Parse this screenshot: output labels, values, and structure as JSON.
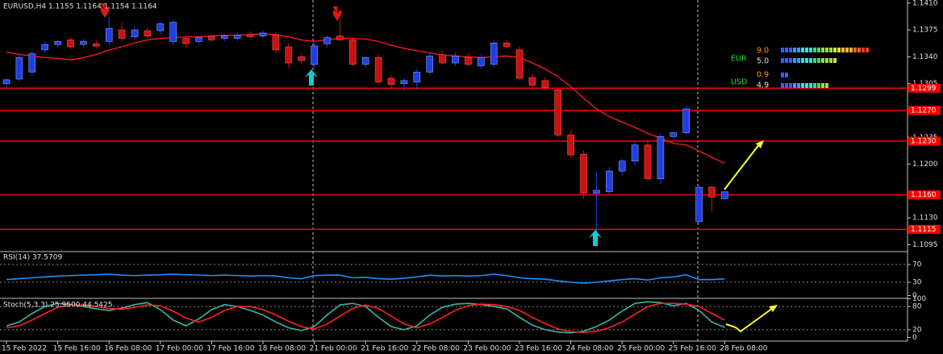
{
  "chart_data": [
    {
      "type": "candlestick",
      "title": "EURUSD,H4  1.1155 1.1164 1.1154 1.1164",
      "categories": [
        "15 Feb 2022",
        null,
        null,
        null,
        "15 Feb 16:00",
        null,
        null,
        null,
        "16 Feb 08:00",
        null,
        null,
        null,
        "17 Feb 00:00",
        null,
        null,
        null,
        "17 Feb 16:00",
        null,
        null,
        null,
        "18 Feb 08:00",
        null,
        null,
        null,
        "21 Feb 00:00",
        null,
        null,
        null,
        "21 Feb 16:00",
        null,
        null,
        null,
        "22 Feb 08:00",
        null,
        null,
        null,
        "23 Feb 00:00",
        null,
        null,
        null,
        "23 Feb 16:00",
        null,
        null,
        null,
        "24 Feb 08:00",
        null,
        null,
        null,
        "25 Feb 00:00",
        null,
        null,
        null,
        "25 Feb 16:00",
        null,
        null,
        null,
        "28 Feb 08:00"
      ],
      "open": [
        1.1305,
        1.1311,
        1.132,
        1.1349,
        1.1356,
        1.1362,
        1.1356,
        1.1357,
        1.136,
        1.1375,
        1.1366,
        1.1374,
        1.1374,
        1.136,
        1.1364,
        1.136,
        1.1366,
        1.1364,
        1.1364,
        1.1369,
        1.1367,
        1.1368,
        1.1353,
        1.134,
        1.133,
        1.1357,
        1.1367,
        1.1362,
        1.133,
        1.1339,
        1.1312,
        1.1305,
        1.1307,
        1.132,
        1.1343,
        1.1332,
        1.1339,
        1.1328,
        1.133,
        1.1358,
        1.1349,
        1.1313,
        1.1309,
        1.1297,
        1.1238,
        1.1213,
        1.1162,
        1.1164,
        1.1191,
        1.1204,
        1.1225,
        1.1181,
        1.1236,
        1.1241,
        1.1125,
        1.117,
        1.1155
      ],
      "high": [
        1.1312,
        1.1345,
        1.1348,
        1.136,
        1.1362,
        1.1365,
        1.1363,
        1.1362,
        1.1392,
        1.1385,
        1.138,
        1.1378,
        1.1385,
        1.1388,
        1.1368,
        1.1367,
        1.137,
        1.137,
        1.1371,
        1.1373,
        1.1374,
        1.1372,
        1.1358,
        1.1345,
        1.136,
        1.1368,
        1.139,
        1.1366,
        1.1342,
        1.1343,
        1.1316,
        1.1312,
        1.1324,
        1.1348,
        1.1348,
        1.1345,
        1.1345,
        1.1343,
        1.1362,
        1.1362,
        1.1353,
        1.1318,
        1.1314,
        1.13,
        1.1245,
        1.1218,
        1.119,
        1.1196,
        1.1208,
        1.123,
        1.1232,
        1.124,
        1.1243,
        1.1275,
        1.1172,
        1.1172,
        1.1164
      ],
      "low": [
        1.13,
        1.1308,
        1.1315,
        1.1345,
        1.1352,
        1.135,
        1.1352,
        1.135,
        1.1355,
        1.136,
        1.1362,
        1.1364,
        1.137,
        1.1355,
        1.1352,
        1.1357,
        1.136,
        1.136,
        1.1361,
        1.1363,
        1.1364,
        1.1345,
        1.1325,
        1.133,
        1.1325,
        1.1352,
        1.136,
        1.1328,
        1.1326,
        1.1305,
        1.1298,
        1.1296,
        1.1297,
        1.1316,
        1.133,
        1.1328,
        1.1328,
        1.1324,
        1.1326,
        1.135,
        1.131,
        1.13,
        1.1297,
        1.1235,
        1.1208,
        1.1155,
        1.11,
        1.116,
        1.1185,
        1.1198,
        1.1178,
        1.1174,
        1.1232,
        1.1238,
        1.1122,
        1.1138,
        1.1154
      ],
      "close": [
        1.131,
        1.1339,
        1.1344,
        1.1356,
        1.136,
        1.1353,
        1.136,
        1.1354,
        1.1377,
        1.1364,
        1.1375,
        1.1367,
        1.1383,
        1.1385,
        1.1357,
        1.1365,
        1.1362,
        1.1367,
        1.1368,
        1.1366,
        1.1371,
        1.1349,
        1.1332,
        1.1335,
        1.1354,
        1.1365,
        1.1362,
        1.133,
        1.1339,
        1.1307,
        1.1304,
        1.1309,
        1.132,
        1.1341,
        1.1332,
        1.1341,
        1.133,
        1.1339,
        1.1358,
        1.1353,
        1.1312,
        1.1303,
        1.13,
        1.1238,
        1.1212,
        1.1162,
        1.1166,
        1.1191,
        1.1204,
        1.1225,
        1.1181,
        1.1236,
        1.1241,
        1.1272,
        1.117,
        1.1157,
        1.1164
      ],
      "up_color": "#1f3fe0",
      "down_color": "#c81212",
      "overlays": [
        {
          "color": "#ff1a1a",
          "values": [
            1.1346,
            1.1343,
            1.1341,
            1.1339,
            1.1338,
            1.1336,
            1.1339,
            1.1343,
            1.1349,
            1.1353,
            1.1358,
            1.1362,
            1.1364,
            1.1365,
            1.1366,
            1.1366,
            1.1367,
            1.1368,
            1.1368,
            1.1369,
            1.137,
            1.1369,
            1.1366,
            1.1362,
            1.136,
            1.1362,
            1.1364,
            1.1364,
            1.1363,
            1.136,
            1.1355,
            1.1351,
            1.1348,
            1.1345,
            1.1342,
            1.1341,
            1.134,
            1.1339,
            1.134,
            1.1341,
            1.1339,
            1.1332,
            1.1324,
            1.1314,
            1.1301,
            1.1286,
            1.1272,
            1.1262,
            1.1255,
            1.1248,
            1.124,
            1.1234,
            1.1227,
            1.1225,
            1.1217,
            1.1209,
            1.1201
          ]
        }
      ],
      "levels": [
        1.1299,
        {
          "value": 1.127,
          "label": "1.1270"
        },
        {
          "value": 1.123,
          "label": "1.1230"
        },
        {
          "value": 1.116,
          "label": "1.1160"
        },
        1.1115
      ],
      "level_color": "#ff0000",
      "ylim": [
        1.1086,
        1.1414
      ],
      "yticks": [
        {
          "value": 1.141,
          "label": "1.1410"
        },
        1.1375,
        {
          "value": 1.134,
          "label": "1.1340"
        },
        1.1305,
        1.1235,
        {
          "value": 1.12,
          "label": "1.1200"
        },
        {
          "value": 1.113,
          "label": "1.1130"
        },
        1.1095
      ]
    },
    {
      "type": "line",
      "title": "RSI(14) 37.5709",
      "series": [
        {
          "color": "#1e90ff",
          "values": [
            36,
            38,
            40,
            42,
            44,
            45,
            46,
            47,
            48,
            46,
            45,
            46,
            47,
            48,
            47,
            46,
            45,
            46,
            45,
            44,
            45,
            44,
            40,
            38,
            45,
            46,
            46,
            40,
            41,
            38,
            37,
            39,
            42,
            46,
            44,
            45,
            44,
            45,
            48,
            45,
            40,
            38,
            37,
            33,
            30,
            28,
            30,
            33,
            36,
            38,
            35,
            40,
            42,
            47,
            36,
            36,
            37.5709
          ]
        }
      ],
      "ylim": [
        0,
        100
      ],
      "yticks": [
        70,
        30,
        0
      ]
    },
    {
      "type": "line",
      "title": "Stoch(5,3,3) 25.9500 44.5425",
      "series": [
        {
          "color": "#3cb3a8",
          "values": [
            30,
            40,
            62,
            80,
            88,
            85,
            80,
            74,
            70,
            76,
            85,
            90,
            72,
            45,
            30,
            48,
            72,
            85,
            80,
            70,
            58,
            40,
            25,
            18,
            28,
            58,
            84,
            88,
            80,
            52,
            28,
            20,
            30,
            58,
            78,
            86,
            88,
            85,
            80,
            74,
            52,
            32,
            20,
            14,
            12,
            16,
            28,
            45,
            68,
            88,
            92,
            90,
            82,
            88,
            70,
            40,
            25.95
          ]
        },
        {
          "color": "#ff2020",
          "values": [
            25,
            30,
            45,
            62,
            78,
            84,
            84,
            80,
            75,
            73,
            78,
            84,
            82,
            68,
            50,
            40,
            52,
            70,
            80,
            80,
            72,
            58,
            42,
            28,
            22,
            35,
            55,
            75,
            84,
            75,
            55,
            35,
            25,
            35,
            52,
            70,
            82,
            86,
            85,
            80,
            70,
            52,
            36,
            22,
            15,
            13,
            16,
            25,
            40,
            60,
            80,
            88,
            88,
            86,
            80,
            62,
            44.5425
          ]
        }
      ],
      "ylim": [
        0,
        100
      ],
      "yticks": [
        100,
        80,
        20,
        0
      ]
    }
  ],
  "widget": {
    "rows": [
      {
        "currency": "EUR",
        "upper": "9.0",
        "lower": "5.0"
      },
      {
        "currency": "USD",
        "upper": "0.9",
        "lower": "4.9"
      }
    ]
  }
}
